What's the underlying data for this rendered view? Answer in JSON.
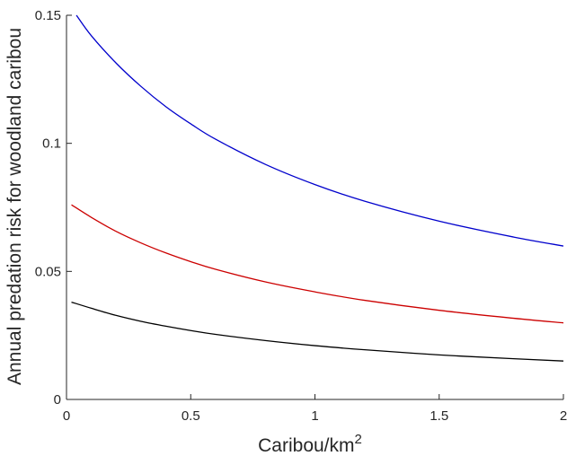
{
  "chart_data": {
    "type": "line",
    "title": "",
    "xlabel": "Caribou/km",
    "xlabel_superscript": "2",
    "ylabel": "Annual predation risk for woodland caribou",
    "xlim": [
      0,
      2
    ],
    "ylim": [
      0,
      0.15
    ],
    "grid": false,
    "legend": "none",
    "x_ticks": [
      {
        "value": 0,
        "label": "0"
      },
      {
        "value": 0.5,
        "label": "0.5"
      },
      {
        "value": 1,
        "label": "1"
      },
      {
        "value": 1.5,
        "label": "1.5"
      },
      {
        "value": 2,
        "label": "2"
      }
    ],
    "y_ticks": [
      {
        "value": 0,
        "label": "0"
      },
      {
        "value": 0.05,
        "label": "0.05"
      },
      {
        "value": 0.1,
        "label": "0.1"
      },
      {
        "value": 0.15,
        "label": "0.15"
      }
    ],
    "x": [
      0.04,
      0.1,
      0.2,
      0.3,
      0.4,
      0.5,
      0.6,
      0.8,
      1.0,
      1.2,
      1.5,
      1.8,
      2.0
    ],
    "series": [
      {
        "color": "#0000cc",
        "values": [
          0.15,
          0.142,
          0.1313,
          0.1222,
          0.1143,
          0.1076,
          0.1016,
          0.0918,
          0.0839,
          0.0774,
          0.0696,
          0.0634,
          0.0599
        ]
      },
      {
        "color": "#cc0000",
        "x": [
          0.02,
          0.1,
          0.2,
          0.3,
          0.4,
          0.5,
          0.6,
          0.8,
          1.0,
          1.2,
          1.5,
          1.8,
          2.0
        ],
        "values": [
          0.076,
          0.0711,
          0.0656,
          0.0611,
          0.0572,
          0.0538,
          0.0508,
          0.0459,
          0.042,
          0.0387,
          0.0348,
          0.0317,
          0.0299
        ]
      },
      {
        "color": "#000000",
        "x": [
          0.02,
          0.1,
          0.2,
          0.3,
          0.4,
          0.5,
          0.6,
          0.8,
          1.0,
          1.2,
          1.5,
          1.8,
          2.0
        ],
        "values": [
          0.038,
          0.0356,
          0.0328,
          0.0305,
          0.0286,
          0.0269,
          0.0254,
          0.023,
          0.021,
          0.0194,
          0.0174,
          0.0159,
          0.015
        ]
      }
    ]
  }
}
